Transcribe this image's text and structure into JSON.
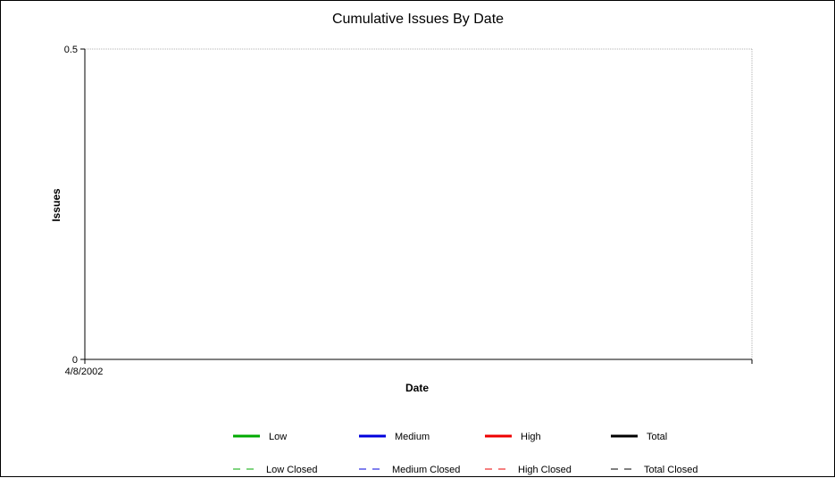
{
  "chart_data": {
    "type": "line",
    "title": "Cumulative Issues By Date",
    "xlabel": "Date",
    "ylabel": "Issues",
    "x_tick_labels": [
      "4/8/2002"
    ],
    "y_tick_labels": [
      "0.5",
      "0"
    ],
    "ylim": [
      0,
      0.5
    ],
    "grid": false,
    "legend_placement": "bottom",
    "series": [
      {
        "name": "Low",
        "style": "solid",
        "color": "#00aa00",
        "values": []
      },
      {
        "name": "Medium",
        "style": "solid",
        "color": "#0000dd",
        "values": []
      },
      {
        "name": "High",
        "style": "solid",
        "color": "#ee0000",
        "values": []
      },
      {
        "name": "Total",
        "style": "solid",
        "color": "#000000",
        "values": []
      },
      {
        "name": "Low Closed",
        "style": "dashed",
        "color": "#00aa00",
        "values": []
      },
      {
        "name": "Medium Closed",
        "style": "dashed",
        "color": "#0000dd",
        "values": []
      },
      {
        "name": "High Closed",
        "style": "dashed",
        "color": "#ee0000",
        "values": []
      },
      {
        "name": "Total Closed",
        "style": "dashed",
        "color": "#000000",
        "values": []
      }
    ]
  }
}
